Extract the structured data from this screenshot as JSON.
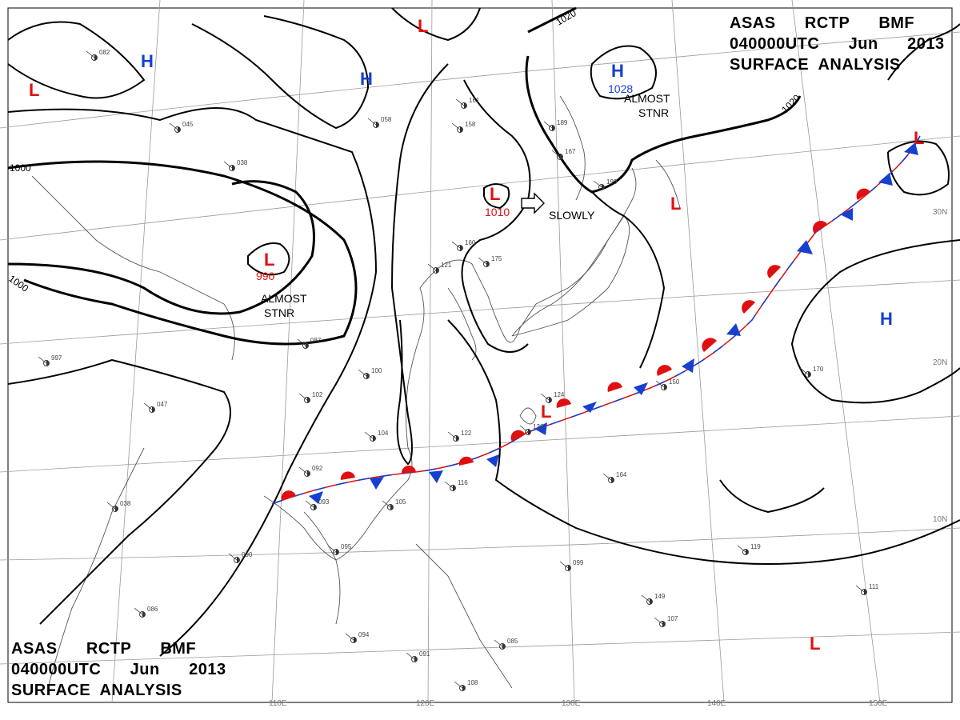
{
  "header": {
    "line1": "ASAS      RCTP      BMF",
    "line2": "040000UTC      Jun      2013",
    "line3": "SURFACE  ANALYSIS"
  },
  "footer": {
    "line1": "ASAS      RCTP      BMF",
    "line2": "040000UTC      Jun      2013",
    "line3": "SURFACE  ANALYSIS"
  },
  "pressure_centers": {
    "low_west": {
      "symbol": "L",
      "value": "990",
      "note1": "ALMOST",
      "note2": "STNR"
    },
    "low_korea": {
      "symbol": "L",
      "value": "1010",
      "note": "SLOWLY"
    },
    "high_okhotsk": {
      "symbol": "H",
      "value": "1028",
      "note1": "ALMOST",
      "note2": "STNR"
    },
    "other_lows": [
      "L",
      "L",
      "L",
      "L",
      "L",
      "L"
    ],
    "other_highs": [
      "H",
      "H",
      "H"
    ]
  },
  "isobar_labels": [
    "1000",
    "1000",
    "1020",
    "1020"
  ],
  "axes": {
    "lon_labels": [
      "110E",
      "120E",
      "130E",
      "140E",
      "150E"
    ],
    "lat_labels": [
      "30N",
      "20N",
      "10N"
    ]
  },
  "station_samples": [
    "082",
    "045",
    "038",
    "058",
    "158",
    "160",
    "175",
    "161",
    "189",
    "167",
    "199",
    "121",
    "100",
    "102",
    "104",
    "122",
    "126",
    "124",
    "150",
    "170",
    "119",
    "111",
    "149",
    "107",
    "092",
    "093",
    "105",
    "116",
    "164",
    "099",
    "095",
    "090",
    "086",
    "094",
    "091",
    "108",
    "085",
    "087",
    "047",
    "997",
    "038"
  ],
  "colors": {
    "low": "#e01010",
    "high": "#1540d0",
    "warm_front": "#e01010",
    "cold_front": "#1540d0",
    "isobar": "#000000",
    "coastline": "#555555",
    "grid": "#9a9a9a"
  }
}
